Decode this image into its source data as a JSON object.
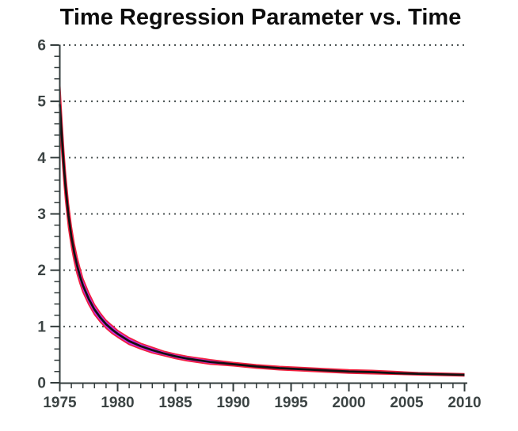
{
  "chart_data": {
    "type": "line",
    "title": "Time Regression Parameter vs. Time",
    "xlabel": "",
    "ylabel": "",
    "xlim": [
      1975,
      2010
    ],
    "ylim": [
      0,
      6
    ],
    "x_major_ticks": [
      1975,
      1980,
      1985,
      1990,
      1995,
      2000,
      2005,
      2010
    ],
    "x_tick_labels": [
      "1975",
      "1980",
      "1985",
      "1990",
      "1995",
      "2000",
      "2005",
      "2010"
    ],
    "y_major_ticks": [
      0,
      1,
      2,
      3,
      4,
      5,
      6
    ],
    "y_tick_labels": [
      "0",
      "1",
      "2",
      "3",
      "4",
      "5",
      "6"
    ],
    "x_minor_step": 1,
    "y_minor_step": 0.2,
    "grid": {
      "horizontal_at": [
        1,
        2,
        3,
        4,
        5,
        6
      ],
      "style": "dotted",
      "color": "#4c5454"
    },
    "legend": "none",
    "x": [
      1975,
      1975.1,
      1975.2,
      1975.35,
      1975.5,
      1975.75,
      1976,
      1976.25,
      1976.5,
      1976.75,
      1977,
      1977.5,
      1978,
      1978.5,
      1979,
      1979.5,
      1980,
      1981,
      1982,
      1983,
      1984,
      1985,
      1986,
      1987,
      1988,
      1990,
      1992,
      1994,
      1996,
      1998,
      2000,
      2002,
      2004,
      2006,
      2008,
      2010
    ],
    "series": [
      {
        "name": "parameter-estimate",
        "role": "center-line",
        "color": "#111111",
        "values": [
          4.95,
          4.62,
          4.3,
          3.85,
          3.47,
          2.97,
          2.6,
          2.31,
          2.08,
          1.89,
          1.73,
          1.49,
          1.3,
          1.16,
          1.04,
          0.95,
          0.87,
          0.74,
          0.65,
          0.58,
          0.52,
          0.47,
          0.43,
          0.4,
          0.37,
          0.33,
          0.29,
          0.26,
          0.24,
          0.22,
          0.2,
          0.19,
          0.17,
          0.16,
          0.15,
          0.14
        ]
      },
      {
        "name": "confidence-upper",
        "role": "band-edge",
        "color": "#f2203d",
        "values": [
          5.31,
          4.95,
          4.6,
          4.12,
          3.71,
          3.18,
          2.78,
          2.47,
          2.23,
          2.03,
          1.85,
          1.6,
          1.39,
          1.24,
          1.11,
          1.02,
          0.93,
          0.8,
          0.7,
          0.63,
          0.56,
          0.51,
          0.47,
          0.44,
          0.41,
          0.36,
          0.32,
          0.29,
          0.27,
          0.25,
          0.23,
          0.22,
          0.2,
          0.18,
          0.17,
          0.16
        ]
      },
      {
        "name": "confidence-lower",
        "role": "band-edge",
        "color": "#f2203d",
        "values": [
          4.59,
          4.29,
          4.0,
          3.58,
          3.23,
          2.76,
          2.42,
          2.15,
          1.93,
          1.76,
          1.61,
          1.39,
          1.21,
          1.08,
          0.97,
          0.88,
          0.81,
          0.68,
          0.6,
          0.53,
          0.48,
          0.43,
          0.39,
          0.36,
          0.33,
          0.3,
          0.26,
          0.23,
          0.21,
          0.19,
          0.17,
          0.16,
          0.15,
          0.14,
          0.13,
          0.12
        ]
      }
    ],
    "band_fill_color": "#c72ce0",
    "axis_color": "#333c3c",
    "tick_label_color": "#3c4444",
    "title_color": "#0d0d0d"
  }
}
